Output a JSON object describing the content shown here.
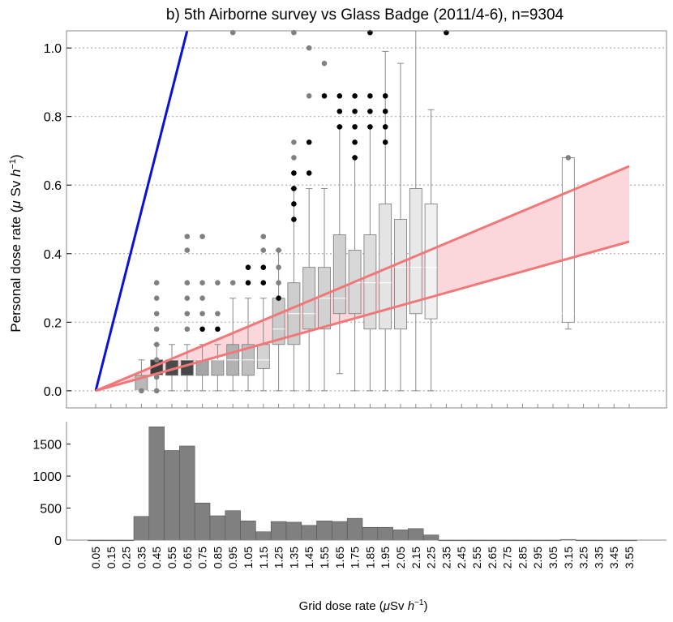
{
  "chart_data": [
    {
      "type": "box",
      "title": "b) 5th Airborne survey vs Glass Badge (2011/4-6), n=9304",
      "xlabel": "",
      "ylabel_parts": [
        "Personal dose rate (",
        "μ",
        " Sv ",
        "h",
        "−1",
        ")"
      ],
      "ylim": [
        -0.05,
        1.05
      ],
      "yticks": [
        0.0,
        0.2,
        0.4,
        0.6,
        0.8,
        1.0
      ],
      "ytick_labels": [
        "0.0",
        "0.2",
        "0.4",
        "0.6",
        "0.8",
        "1.0"
      ],
      "grid": "horizontal dotted",
      "x_categories": [
        "0.05",
        "0.15",
        "0.25",
        "0.35",
        "0.45",
        "0.55",
        "0.65",
        "0.75",
        "0.85",
        "0.95",
        "1.05",
        "1.15",
        "1.25",
        "1.35",
        "1.45",
        "1.55",
        "1.65",
        "1.75",
        "1.85",
        "1.95",
        "2.05",
        "2.15",
        "2.25",
        "2.35",
        "2.45",
        "2.55",
        "2.65",
        "2.75",
        "2.85",
        "2.95",
        "3.05",
        "3.15",
        "3.25",
        "3.35",
        "3.45",
        "3.55"
      ],
      "boxes": [
        {
          "x": 0.35,
          "q1": 0.0,
          "median": 0.0,
          "q3": 0.045,
          "whisker_low": 0.0,
          "whisker_high": 0.09,
          "fill": "#b8b8b8"
        },
        {
          "x": 0.45,
          "q1": 0.045,
          "median": 0.045,
          "q3": 0.09,
          "whisker_low": 0.0,
          "whisker_high": 0.135,
          "fill": "#3c3c3c"
        },
        {
          "x": 0.55,
          "q1": 0.045,
          "median": 0.09,
          "q3": 0.09,
          "whisker_low": 0.0,
          "whisker_high": 0.135,
          "fill": "#4a4a4a"
        },
        {
          "x": 0.65,
          "q1": 0.045,
          "median": 0.09,
          "q3": 0.09,
          "whisker_low": 0.0,
          "whisker_high": 0.135,
          "fill": "#474747"
        },
        {
          "x": 0.75,
          "q1": 0.045,
          "median": 0.09,
          "q3": 0.09,
          "whisker_low": 0.0,
          "whisker_high": 0.135,
          "fill": "#a5a5a5"
        },
        {
          "x": 0.85,
          "q1": 0.045,
          "median": 0.09,
          "q3": 0.09,
          "whisker_low": 0.0,
          "whisker_high": 0.135,
          "fill": "#b6b6b6"
        },
        {
          "x": 0.95,
          "q1": 0.045,
          "median": 0.09,
          "q3": 0.135,
          "whisker_low": 0.0,
          "whisker_high": 0.27,
          "fill": "#b2b2b2"
        },
        {
          "x": 1.05,
          "q1": 0.045,
          "median": 0.09,
          "q3": 0.135,
          "whisker_low": 0.0,
          "whisker_high": 0.27,
          "fill": "#c0c0c0"
        },
        {
          "x": 1.15,
          "q1": 0.065,
          "median": 0.09,
          "q3": 0.135,
          "whisker_low": 0.0,
          "whisker_high": 0.27,
          "fill": "#d2d2d2"
        },
        {
          "x": 1.25,
          "q1": 0.135,
          "median": 0.18,
          "q3": 0.27,
          "whisker_low": 0.0,
          "whisker_high": 0.41,
          "fill": "#cbcbcb"
        },
        {
          "x": 1.35,
          "q1": 0.135,
          "median": 0.225,
          "q3": 0.315,
          "whisker_low": 0.0,
          "whisker_high": 0.59,
          "fill": "#cdcdcd"
        },
        {
          "x": 1.45,
          "q1": 0.18,
          "median": 0.225,
          "q3": 0.36,
          "whisker_low": 0.0,
          "whisker_high": 0.59,
          "fill": "#d0d0d0"
        },
        {
          "x": 1.55,
          "q1": 0.18,
          "median": 0.27,
          "q3": 0.36,
          "whisker_low": 0.0,
          "whisker_high": 0.59,
          "fill": "#d2d2d2"
        },
        {
          "x": 1.65,
          "q1": 0.225,
          "median": 0.27,
          "q3": 0.455,
          "whisker_low": 0.05,
          "whisker_high": 0.77,
          "fill": "#d0d0d0"
        },
        {
          "x": 1.75,
          "q1": 0.225,
          "median": 0.315,
          "q3": 0.41,
          "whisker_low": 0.0,
          "whisker_high": 0.68,
          "fill": "#d7d7d7"
        },
        {
          "x": 1.85,
          "q1": 0.18,
          "median": 0.315,
          "q3": 0.455,
          "whisker_low": 0.0,
          "whisker_high": 0.77,
          "fill": "#dddddd"
        },
        {
          "x": 1.95,
          "q1": 0.18,
          "median": 0.315,
          "q3": 0.545,
          "whisker_low": 0.0,
          "whisker_high": 0.99,
          "fill": "#e4e4e4"
        },
        {
          "x": 2.05,
          "q1": 0.18,
          "median": 0.36,
          "q3": 0.5,
          "whisker_low": 0.0,
          "whisker_high": 0.955,
          "fill": "#e4e4e4"
        },
        {
          "x": 2.15,
          "q1": 0.225,
          "median": 0.36,
          "q3": 0.59,
          "whisker_low": 0.0,
          "whisker_high": 1.05,
          "fill": "#e8e8e8"
        },
        {
          "x": 2.25,
          "q1": 0.21,
          "median": 0.36,
          "q3": 0.545,
          "whisker_low": 0.0,
          "whisker_high": 0.82,
          "fill": "#f1f1f1"
        },
        {
          "x": 3.15,
          "q1": 0.2,
          "median": 0.225,
          "q3": 0.68,
          "whisker_low": 0.18,
          "whisker_high": 0.68,
          "fill": "#ffffff"
        }
      ],
      "outliers_gray": [
        [
          0.35,
          0.0
        ],
        [
          0.45,
          0.0
        ],
        [
          0.45,
          0.04
        ],
        [
          0.45,
          0.09
        ],
        [
          0.45,
          0.135
        ],
        [
          0.45,
          0.18
        ],
        [
          0.45,
          0.225
        ],
        [
          0.45,
          0.27
        ],
        [
          0.45,
          0.315
        ],
        [
          0.65,
          0.18
        ],
        [
          0.65,
          0.225
        ],
        [
          0.65,
          0.27
        ],
        [
          0.65,
          0.315
        ],
        [
          0.65,
          0.41
        ],
        [
          0.65,
          0.45
        ],
        [
          0.75,
          0.225
        ],
        [
          0.75,
          0.27
        ],
        [
          0.75,
          0.315
        ],
        [
          0.75,
          0.45
        ],
        [
          0.85,
          0.225
        ],
        [
          0.85,
          0.315
        ],
        [
          0.95,
          0.315
        ],
        [
          0.95,
          1.045
        ],
        [
          1.15,
          0.41
        ],
        [
          1.15,
          0.45
        ],
        [
          1.25,
          0.315
        ],
        [
          1.25,
          0.36
        ],
        [
          1.25,
          0.41
        ],
        [
          1.35,
          0.59
        ],
        [
          1.35,
          0.635
        ],
        [
          1.35,
          0.68
        ],
        [
          1.35,
          0.725
        ],
        [
          1.35,
          1.045
        ],
        [
          1.45,
          0.86
        ],
        [
          1.45,
          1.0
        ],
        [
          1.55,
          0.955
        ],
        [
          3.15,
          0.68
        ]
      ],
      "outliers_black": [
        [
          0.75,
          0.18
        ],
        [
          0.85,
          0.18
        ],
        [
          1.05,
          0.315
        ],
        [
          1.05,
          0.36
        ],
        [
          1.15,
          0.315
        ],
        [
          1.15,
          0.36
        ],
        [
          1.25,
          0.27
        ],
        [
          1.35,
          0.5
        ],
        [
          1.35,
          0.545
        ],
        [
          1.35,
          0.59
        ],
        [
          1.35,
          0.635
        ],
        [
          1.45,
          0.635
        ],
        [
          1.45,
          0.725
        ],
        [
          1.55,
          0.86
        ],
        [
          1.65,
          0.77
        ],
        [
          1.65,
          0.815
        ],
        [
          1.65,
          0.86
        ],
        [
          1.75,
          0.68
        ],
        [
          1.75,
          0.725
        ],
        [
          1.75,
          0.77
        ],
        [
          1.75,
          0.815
        ],
        [
          1.75,
          0.86
        ],
        [
          1.85,
          0.77
        ],
        [
          1.85,
          0.815
        ],
        [
          1.85,
          0.86
        ],
        [
          1.85,
          1.045
        ],
        [
          1.95,
          0.725
        ],
        [
          1.95,
          0.77
        ],
        [
          1.95,
          0.815
        ],
        [
          1.95,
          0.86
        ],
        [
          2.35,
          1.045
        ]
      ],
      "lines": [
        {
          "color": "#0a12d8",
          "from": [
            0.05,
            0.0
          ],
          "to": [
            0.65,
            1.05
          ]
        },
        {
          "color": "#f07878",
          "from": [
            0.05,
            0.0
          ],
          "to": [
            3.55,
            0.655
          ]
        },
        {
          "color": "#f07878",
          "from": [
            0.05,
            0.0
          ],
          "to": [
            3.55,
            0.435
          ]
        }
      ],
      "band_fill": "#fbd7dc"
    },
    {
      "type": "bar",
      "xlabel_parts": [
        "Grid dose rate (",
        "μ",
        "Sv ",
        "h",
        "−1",
        ")"
      ],
      "ylim": [
        0,
        1850
      ],
      "yticks": [
        0,
        500,
        1000,
        1500
      ],
      "categories": [
        "0.05",
        "0.15",
        "0.25",
        "0.35",
        "0.45",
        "0.55",
        "0.65",
        "0.75",
        "0.85",
        "0.95",
        "1.05",
        "1.15",
        "1.25",
        "1.35",
        "1.45",
        "1.55",
        "1.65",
        "1.75",
        "1.85",
        "1.95",
        "2.05",
        "2.15",
        "2.25",
        "2.35",
        "2.45",
        "2.55",
        "2.65",
        "2.75",
        "2.85",
        "2.95",
        "3.05",
        "3.15",
        "3.25",
        "3.35",
        "3.45",
        "3.55"
      ],
      "values": [
        0,
        0,
        0,
        370,
        1770,
        1400,
        1470,
        580,
        380,
        460,
        300,
        130,
        290,
        280,
        230,
        300,
        290,
        340,
        200,
        200,
        160,
        180,
        80,
        0,
        0,
        0,
        0,
        0,
        0,
        0,
        0,
        10,
        0,
        0,
        0,
        0
      ],
      "bar_color": "#808080"
    }
  ]
}
